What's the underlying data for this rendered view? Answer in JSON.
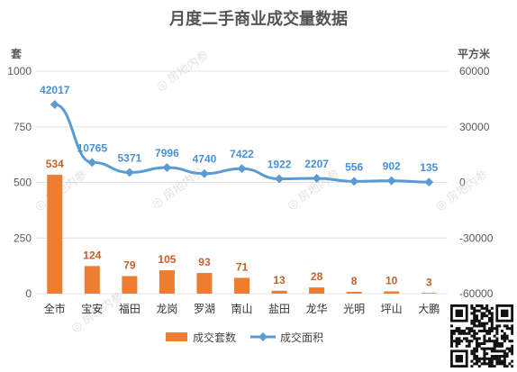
{
  "chart_data": {
    "type": "bar",
    "title": "月度二手商业成交量数据",
    "categories": [
      "全市",
      "宝安",
      "福田",
      "龙岗",
      "罗湖",
      "南山",
      "盐田",
      "龙华",
      "光明",
      "坪山",
      "大鹏"
    ],
    "left_axis": {
      "unit": "套",
      "ylim": [
        0,
        1000
      ],
      "ticks": [
        0,
        250,
        500,
        750,
        1000
      ]
    },
    "right_axis": {
      "unit": "平方米",
      "ylim": [
        -60000,
        60000
      ],
      "ticks": [
        -60000,
        -30000,
        0,
        30000,
        60000
      ]
    },
    "series": [
      {
        "name": "成交套数",
        "type": "bar",
        "axis": "left",
        "color": "#ed7d31",
        "values": [
          534,
          124,
          79,
          105,
          93,
          71,
          13,
          28,
          8,
          10,
          3
        ]
      },
      {
        "name": "成交面积",
        "type": "line",
        "axis": "right",
        "color": "#5b9bd5",
        "values": [
          42017,
          10765,
          5371,
          7996,
          4740,
          7422,
          1922,
          2207,
          556,
          902,
          135
        ]
      }
    ],
    "grid": true,
    "legend": "bottom"
  },
  "watermark": "房地内参",
  "qr_code": "qr-code"
}
